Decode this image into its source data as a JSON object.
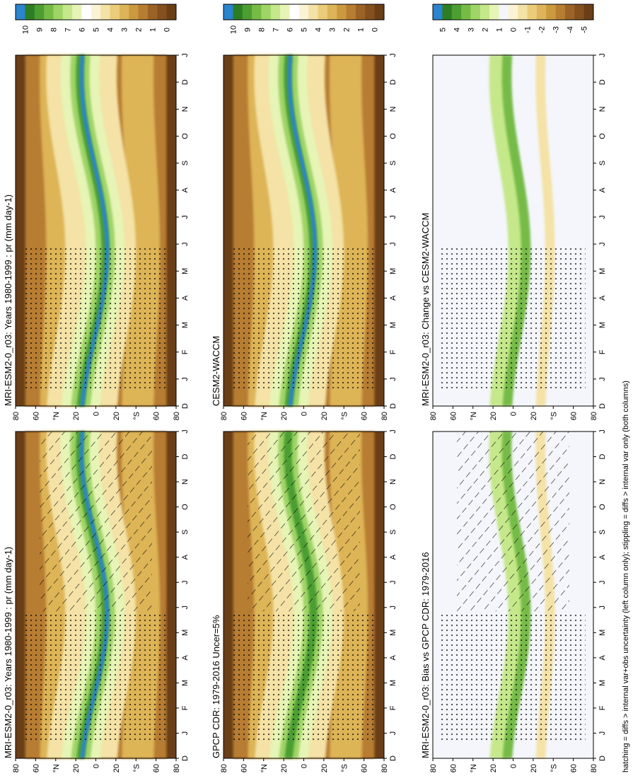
{
  "footnote": "hatching = diffs > internal var+obs uncertainty (left column only); stippling = diffs > internal var only (both columns)",
  "month_ticks": [
    "D",
    "J",
    "F",
    "M",
    "A",
    "M",
    "J",
    "J",
    "A",
    "S",
    "O",
    "N",
    "D",
    "J"
  ],
  "lat_ticks": [
    "80",
    "60",
    "°N",
    "20",
    "0",
    "20",
    "°S",
    "60",
    "80"
  ],
  "colors": {
    "abs": [
      "#6a3f17",
      "#84501d",
      "#9c6326",
      "#b77d31",
      "#cb9a3f",
      "#ddb457",
      "#ebcc7a",
      "#f4e2a6",
      "#fbf3d4",
      "#ffffff",
      "#e6f5b6",
      "#c5e88a",
      "#9fd466",
      "#76bb46",
      "#4c9e30",
      "#2d7d24",
      "#2b84cf"
    ],
    "diff": [
      "#6a3f17",
      "#84501d",
      "#9c6326",
      "#b77d31",
      "#cb9a3f",
      "#ddb457",
      "#ebcc7a",
      "#f4e2a6",
      "#fbf3d4",
      "#f4f6fb",
      "#e6f5b6",
      "#c5e88a",
      "#9fd466",
      "#76bb46",
      "#4c9e30",
      "#2d7d24",
      "#2b84cf"
    ]
  },
  "chart_data": [
    {
      "type": "heatmap",
      "title": "MRI-ESM2-0_r03: Years 1980-1999 : pr (mm day-1)",
      "x": "month (D..J)",
      "y": "latitude (80°N..80°S)",
      "colorbar_ticks": [
        "10",
        "9",
        "8",
        "7",
        "6",
        "5",
        "4",
        "3",
        "2",
        "1",
        "0"
      ],
      "colorbar_range": [
        0,
        10
      ],
      "itcz_peak": 10,
      "overlay": "hatching + stippling"
    },
    {
      "type": "heatmap",
      "title": "MRI-ESM2-0_r03: Years 1980-1999 : pr (mm day-1)",
      "colorbar_ticks": [
        "10",
        "9",
        "8",
        "7",
        "6",
        "5",
        "4",
        "3",
        "2",
        "1",
        "0"
      ],
      "colorbar_range": [
        0,
        10
      ],
      "itcz_peak": 10,
      "overlay": "stippling"
    },
    {
      "type": "heatmap",
      "title": "GPCP CDR: 1979-2016 Uncer=5%",
      "colorbar_ticks": [
        "10",
        "9",
        "8",
        "7",
        "6",
        "5",
        "4",
        "3",
        "2",
        "1",
        "0"
      ],
      "colorbar_range": [
        0,
        10
      ],
      "itcz_peak": 8,
      "overlay": "hatching + stippling"
    },
    {
      "type": "heatmap",
      "title": "CESM2-WACCM",
      "colorbar_ticks": [
        "10",
        "9",
        "8",
        "7",
        "6",
        "5",
        "4",
        "3",
        "2",
        "1",
        "0"
      ],
      "colorbar_range": [
        0,
        10
      ],
      "itcz_peak": 10,
      "overlay": "stippling"
    },
    {
      "type": "heatmap",
      "title": "MRI-ESM2-0_r03: Bias vs GPCP CDR: 1979-2016",
      "colorbar_ticks": [
        "5",
        "4",
        "3",
        "2",
        "1",
        "0",
        "-1",
        "-2",
        "-3",
        "-4",
        "-5"
      ],
      "colorbar_range": [
        -5,
        5
      ],
      "overlay": "hatching + stippling"
    },
    {
      "type": "heatmap",
      "title": "MRI-ESM2-0_r03: Change vs CESM2-WACCM",
      "colorbar_ticks": [
        "5",
        "4",
        "3",
        "2",
        "1",
        "0",
        "-1",
        "-2",
        "-3",
        "-4",
        "-5"
      ],
      "colorbar_range": [
        -5,
        5
      ],
      "overlay": "stippling"
    }
  ]
}
